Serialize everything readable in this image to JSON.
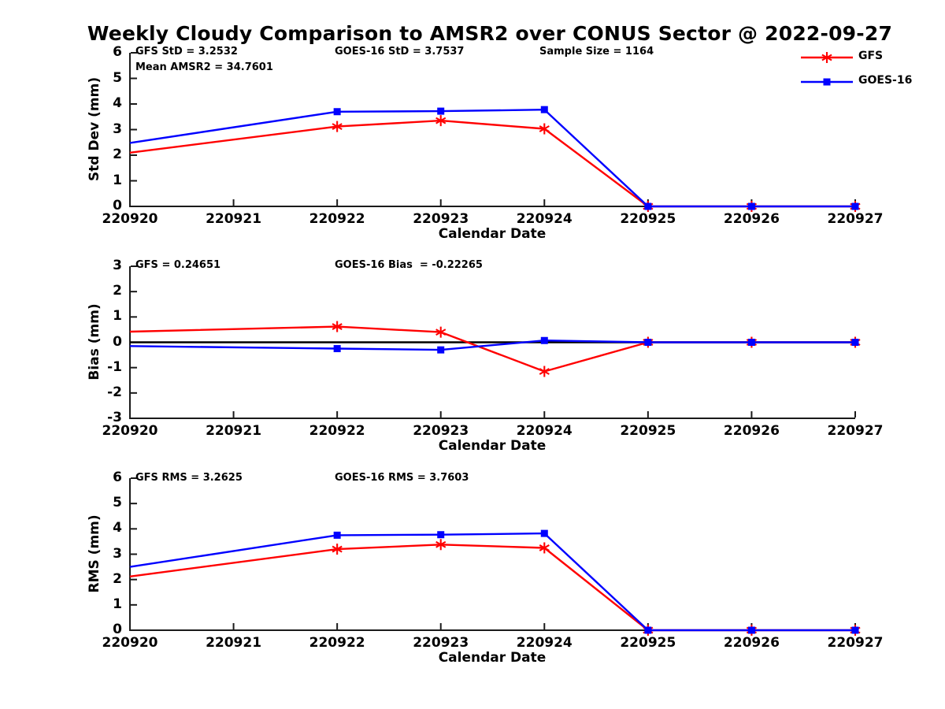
{
  "title": "Weekly Cloudy Comparison to AMSR2 over CONUS Sector @ 2022-09-27",
  "legend": {
    "position": "top-right-outside",
    "entries": [
      {
        "label": "GFS",
        "color": "#ff0000",
        "marker": "asterisk"
      },
      {
        "label": "GOES-16",
        "color": "#0000ff",
        "marker": "square"
      }
    ]
  },
  "axis_color": "#1a1a1a",
  "chart_data": [
    {
      "type": "line",
      "id": "std-dev",
      "ylabel": "Std Dev (mm)",
      "xlabel": "Calendar Date",
      "ylim": [
        0,
        6
      ],
      "yticks": [
        0,
        1,
        2,
        3,
        4,
        5,
        6
      ],
      "xticklabels": [
        "220920",
        "220921",
        "220922",
        "220923",
        "220924",
        "220925",
        "220926",
        "220927"
      ],
      "grid": false,
      "zero_line": false,
      "annotations": [
        "GFS StD = 3.2532",
        "Mean AMSR2 = 34.7601",
        "GOES-16 StD = 3.7537",
        "Sample Size = 1164"
      ],
      "series": [
        {
          "name": "GFS",
          "color": "#ff0000",
          "marker": "asterisk",
          "x": [
            "220920",
            "220922",
            "220923",
            "220924",
            "220925",
            "220926",
            "220927"
          ],
          "y": [
            2.1,
            3.12,
            3.35,
            3.03,
            0,
            0,
            0
          ],
          "show_marker": [
            false,
            true,
            true,
            true,
            true,
            true,
            true
          ]
        },
        {
          "name": "GOES-16",
          "color": "#0000ff",
          "marker": "square",
          "x": [
            "220920",
            "220922",
            "220923",
            "220924",
            "220925",
            "220926",
            "220927"
          ],
          "y": [
            2.48,
            3.7,
            3.72,
            3.78,
            0,
            0,
            0
          ],
          "show_marker": [
            false,
            true,
            true,
            true,
            true,
            true,
            true
          ]
        }
      ]
    },
    {
      "type": "line",
      "id": "bias",
      "ylabel": "Bias (mm)",
      "xlabel": "Calendar Date",
      "ylim": [
        -3,
        3
      ],
      "yticks": [
        -3,
        -2,
        -1,
        0,
        1,
        2,
        3
      ],
      "xticklabels": [
        "220920",
        "220921",
        "220922",
        "220923",
        "220924",
        "220925",
        "220926",
        "220927"
      ],
      "grid": false,
      "zero_line": true,
      "annotations": [
        "GFS = 0.24651",
        "GOES-16 Bias  = -0.22265"
      ],
      "series": [
        {
          "name": "GFS",
          "color": "#ff0000",
          "marker": "asterisk",
          "x": [
            "220920",
            "220922",
            "220923",
            "220924",
            "220925",
            "220926",
            "220927"
          ],
          "y": [
            0.42,
            0.62,
            0.4,
            -1.15,
            0,
            0,
            0
          ],
          "show_marker": [
            false,
            true,
            true,
            true,
            true,
            true,
            true
          ]
        },
        {
          "name": "GOES-16",
          "color": "#0000ff",
          "marker": "square",
          "x": [
            "220920",
            "220922",
            "220923",
            "220924",
            "220925",
            "220926",
            "220927"
          ],
          "y": [
            -0.15,
            -0.25,
            -0.3,
            0.07,
            0,
            0,
            0
          ],
          "show_marker": [
            false,
            true,
            true,
            true,
            true,
            true,
            true
          ]
        }
      ]
    },
    {
      "type": "line",
      "id": "rms",
      "ylabel": "RMS (mm)",
      "xlabel": "Calendar Date",
      "ylim": [
        0,
        6
      ],
      "yticks": [
        0,
        1,
        2,
        3,
        4,
        5,
        6
      ],
      "xticklabels": [
        "220920",
        "220921",
        "220922",
        "220923",
        "220924",
        "220925",
        "220926",
        "220927"
      ],
      "grid": false,
      "zero_line": false,
      "annotations": [
        "GFS RMS = 3.2625",
        "GOES-16 RMS = 3.7603"
      ],
      "series": [
        {
          "name": "GFS",
          "color": "#ff0000",
          "marker": "asterisk",
          "x": [
            "220920",
            "220922",
            "220923",
            "220924",
            "220925",
            "220926",
            "220927"
          ],
          "y": [
            2.12,
            3.2,
            3.38,
            3.25,
            0,
            0,
            0
          ],
          "show_marker": [
            false,
            true,
            true,
            true,
            true,
            true,
            true
          ]
        },
        {
          "name": "GOES-16",
          "color": "#0000ff",
          "marker": "square",
          "x": [
            "220920",
            "220922",
            "220923",
            "220924",
            "220925",
            "220926",
            "220927"
          ],
          "y": [
            2.5,
            3.75,
            3.77,
            3.82,
            0,
            0,
            0
          ],
          "show_marker": [
            false,
            true,
            true,
            true,
            true,
            true,
            true
          ]
        }
      ]
    }
  ]
}
